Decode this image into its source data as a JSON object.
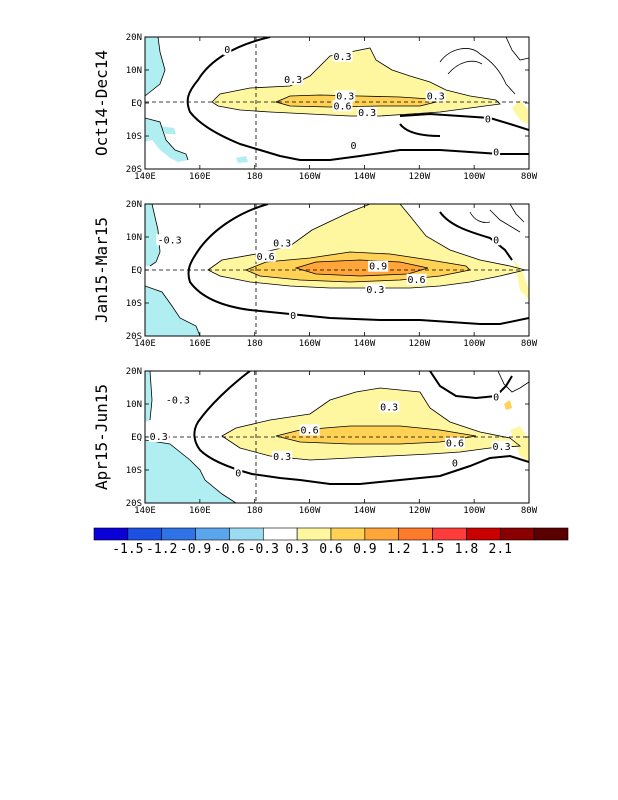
{
  "panels": [
    {
      "label": "Oct14-Dec14",
      "contour_labels": [
        {
          "text": "0",
          "lon": 170,
          "lat": 16
        },
        {
          "text": "0.3",
          "lon": -148,
          "lat": 14
        },
        {
          "text": "0.3",
          "lon": -166,
          "lat": 7
        },
        {
          "text": "0.3",
          "lon": -147,
          "lat": 2
        },
        {
          "text": "0.6",
          "lon": -148,
          "lat": -1
        },
        {
          "text": "0.3",
          "lon": -139,
          "lat": -3
        },
        {
          "text": "0.3",
          "lon": -114,
          "lat": 2
        },
        {
          "text": "0",
          "lon": -95,
          "lat": -5
        },
        {
          "text": "0",
          "lon": -144,
          "lat": -13
        },
        {
          "text": "0",
          "lon": -92,
          "lat": -15
        }
      ]
    },
    {
      "label": "Jan15-Mar15",
      "contour_labels": [
        {
          "text": "-0.3",
          "lon": 149,
          "lat": 9
        },
        {
          "text": "0.3",
          "lon": -170,
          "lat": 8
        },
        {
          "text": "0.6",
          "lon": -176,
          "lat": 4
        },
        {
          "text": "0.9",
          "lon": -135,
          "lat": 1
        },
        {
          "text": "0.6",
          "lon": -121,
          "lat": -3
        },
        {
          "text": "0.3",
          "lon": -136,
          "lat": -6
        },
        {
          "text": "0",
          "lon": -166,
          "lat": -14
        },
        {
          "text": "0",
          "lon": -92,
          "lat": 9
        }
      ]
    },
    {
      "label": "Apr15-Jun15",
      "contour_labels": [
        {
          "text": "-0.3",
          "lon": 152,
          "lat": 11
        },
        {
          "text": "0.3",
          "lon": -131,
          "lat": 9
        },
        {
          "text": "0.6",
          "lon": -160,
          "lat": 2
        },
        {
          "text": "0.3",
          "lon": 145,
          "lat": 0
        },
        {
          "text": "0.6",
          "lon": -107,
          "lat": -2
        },
        {
          "text": "0.3",
          "lon": -90,
          "lat": -3
        },
        {
          "text": "0.3",
          "lon": -170,
          "lat": -6
        },
        {
          "text": "0",
          "lon": 174,
          "lat": -11
        },
        {
          "text": "0",
          "lon": -107,
          "lat": -8
        },
        {
          "text": "0",
          "lon": -92,
          "lat": 12
        }
      ]
    }
  ],
  "x_ticks": [
    "140E",
    "160E",
    "180",
    "160W",
    "140W",
    "120W",
    "100W",
    "80W"
  ],
  "y_ticks": [
    "20N",
    "10N",
    "EQ",
    "10S",
    "20S"
  ],
  "colorbar": {
    "labels": [
      "-1.5",
      "-1.2",
      "-0.9",
      "-0.6",
      "-0.3",
      "0.3",
      "0.6",
      "0.9",
      "1.2",
      "1.5",
      "1.8",
      "2.1"
    ],
    "colors": [
      "#0a00d8",
      "#1c50e0",
      "#2f73e6",
      "#5aa5ec",
      "#9cdcf2",
      "#ffffff",
      "#fff7a0",
      "#ffd154",
      "#ffa53a",
      "#ff7a2a",
      "#ff3c3c",
      "#c80000",
      "#8a0000",
      "#5a0000"
    ]
  },
  "colors": {
    "land": "#b0eef2",
    "anom_03": "#fff7a0",
    "anom_06": "#ffd154",
    "anom_09": "#ffa53a"
  }
}
